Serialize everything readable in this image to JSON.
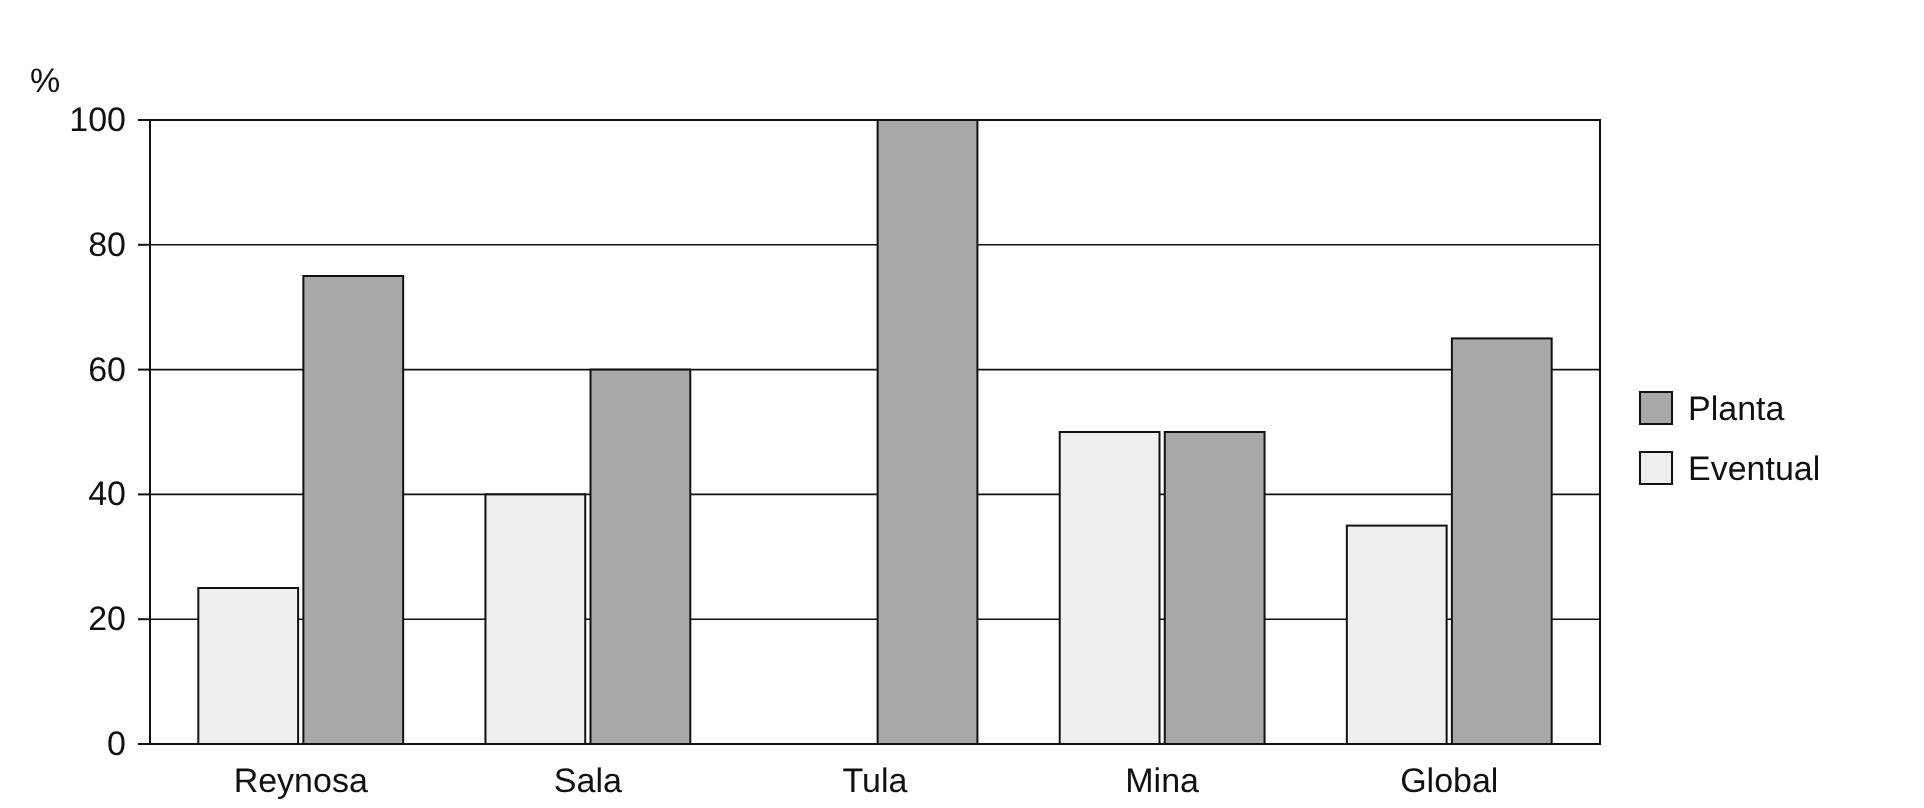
{
  "chart_data": {
    "type": "bar",
    "ylabel": "%",
    "categories": [
      "Reynosa",
      "Sala",
      "Tula",
      "Mina",
      "Global"
    ],
    "series": [
      {
        "name": "Eventual",
        "color": "#efefef",
        "values": [
          25,
          40,
          0,
          50,
          35
        ]
      },
      {
        "name": "Planta",
        "color": "#a8a8a8",
        "values": [
          75,
          60,
          100,
          50,
          65
        ]
      }
    ],
    "ylim": [
      0,
      100
    ],
    "yticks": [
      0,
      20,
      40,
      60,
      80,
      100
    ],
    "grid": "y",
    "legend": "right"
  }
}
